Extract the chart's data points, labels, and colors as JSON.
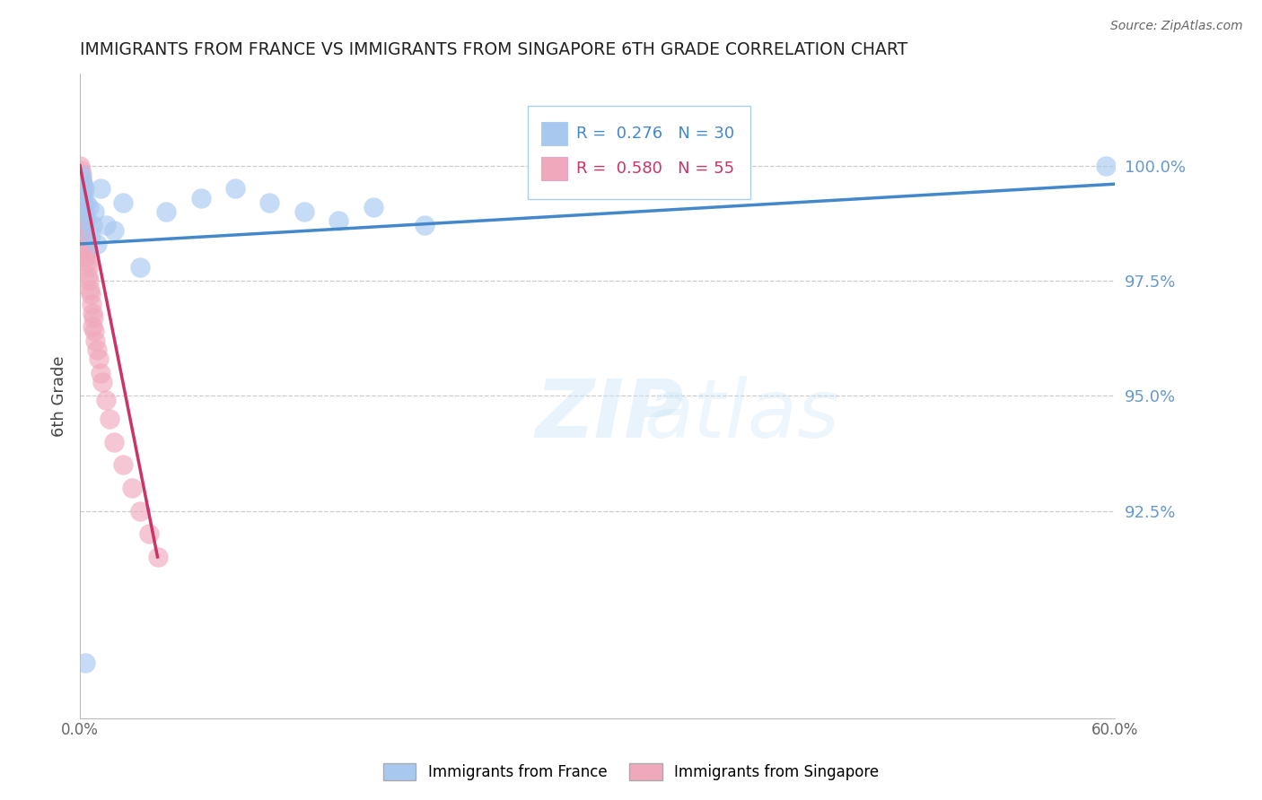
{
  "title": "IMMIGRANTS FROM FRANCE VS IMMIGRANTS FROM SINGAPORE 6TH GRADE CORRELATION CHART",
  "source": "Source: ZipAtlas.com",
  "ylabel": "6th Grade",
  "xlim": [
    0.0,
    60.0
  ],
  "ylim": [
    88.0,
    102.0
  ],
  "yticks": [
    92.5,
    95.0,
    97.5,
    100.0
  ],
  "ytick_labels": [
    "92.5%",
    "95.0%",
    "97.5%",
    "100.0%"
  ],
  "xtick_labels": [
    "0.0%",
    "60.0%"
  ],
  "legend_france": "Immigrants from France",
  "legend_singapore": "Immigrants from Singapore",
  "r_france": "0.276",
  "n_france": "30",
  "r_singapore": "0.580",
  "n_singapore": "55",
  "color_france": "#a8c8f0",
  "color_singapore": "#f0a8bc",
  "trendline_france_color": "#4488cc",
  "trendline_singapore_color": "#cc3366",
  "france_x": [
    0.05,
    0.08,
    0.1,
    0.12,
    0.15,
    0.18,
    0.2,
    0.25,
    0.3,
    0.35,
    0.4,
    0.5,
    0.6,
    0.7,
    0.85,
    1.0,
    1.2,
    1.5,
    2.0,
    2.5,
    3.5,
    5.0,
    7.0,
    9.0,
    11.0,
    13.0,
    15.0,
    17.0,
    20.0,
    59.5
  ],
  "france_y": [
    99.7,
    99.5,
    99.8,
    99.3,
    99.6,
    99.2,
    99.4,
    99.5,
    99.0,
    99.2,
    98.8,
    99.1,
    98.5,
    98.7,
    99.0,
    98.3,
    99.5,
    98.7,
    98.6,
    99.2,
    97.8,
    99.0,
    99.3,
    99.5,
    99.2,
    99.0,
    98.8,
    99.1,
    98.7,
    100.0
  ],
  "singapore_x": [
    0.02,
    0.04,
    0.05,
    0.07,
    0.08,
    0.09,
    0.1,
    0.12,
    0.13,
    0.15,
    0.16,
    0.17,
    0.18,
    0.2,
    0.22,
    0.24,
    0.25,
    0.27,
    0.28,
    0.3,
    0.32,
    0.35,
    0.38,
    0.4,
    0.42,
    0.45,
    0.48,
    0.5,
    0.55,
    0.6,
    0.65,
    0.7,
    0.75,
    0.8,
    0.85,
    0.9,
    1.0,
    1.1,
    1.2,
    1.3,
    1.5,
    1.7,
    2.0,
    2.5,
    3.0,
    3.5,
    4.0,
    4.5,
    0.06,
    0.11,
    0.14,
    0.19,
    0.23,
    0.26,
    0.31
  ],
  "singapore_y": [
    100.0,
    99.8,
    99.9,
    99.6,
    99.7,
    99.5,
    99.4,
    99.3,
    99.6,
    99.2,
    99.4,
    99.0,
    99.1,
    98.9,
    99.0,
    98.7,
    98.8,
    98.6,
    98.7,
    98.5,
    98.3,
    98.4,
    98.1,
    98.2,
    97.9,
    97.8,
    97.6,
    97.5,
    97.3,
    97.2,
    97.0,
    96.8,
    96.5,
    96.7,
    96.4,
    96.2,
    96.0,
    95.8,
    95.5,
    95.3,
    94.9,
    94.5,
    94.0,
    93.5,
    93.0,
    92.5,
    92.0,
    91.5,
    99.6,
    99.2,
    99.0,
    98.8,
    98.5,
    98.3,
    98.0
  ],
  "france_trend_x": [
    0.0,
    60.0
  ],
  "france_trend_y": [
    98.3,
    99.6
  ],
  "singapore_trend_x": [
    0.0,
    4.5
  ],
  "singapore_trend_y": [
    100.0,
    91.5
  ],
  "watermark_zip": "ZIP",
  "watermark_atlas": "atlas",
  "background_color": "#ffffff",
  "grid_color": "#cccccc",
  "title_color": "#222222",
  "right_label_color": "#6699cc",
  "solo_blue_x": [
    0.3
  ],
  "solo_blue_y": [
    89.2
  ]
}
